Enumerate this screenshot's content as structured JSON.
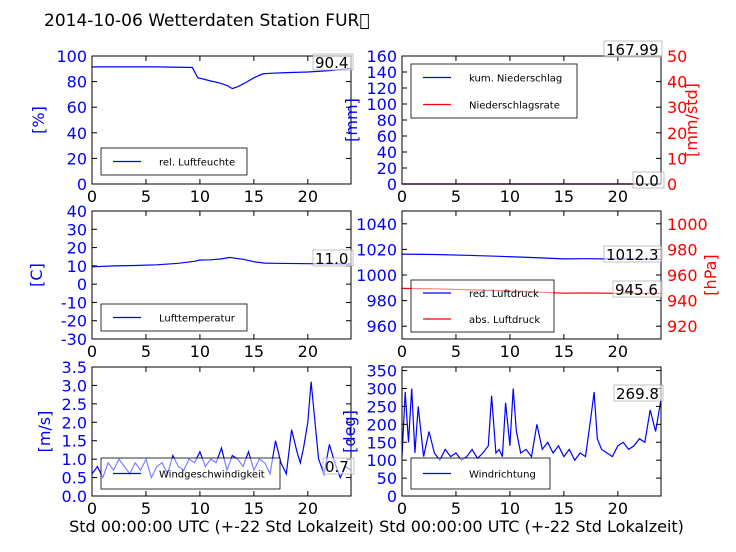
{
  "title": "2014-10-06 Wetterdaten Station FUR\u0000",
  "xlabel": "Std 00:00:00 UTC (+-22 Std Lokalzeit)",
  "colors": {
    "primary": "#0000ff",
    "secondary": "#ff0000"
  },
  "chart_data": [
    {
      "id": "humidity",
      "type": "line",
      "ylabel": "[%]",
      "xlim": [
        0,
        24
      ],
      "ylim": [
        0,
        100
      ],
      "yticks": [
        0,
        20,
        40,
        60,
        80,
        100
      ],
      "xticks": [
        0,
        5,
        10,
        15,
        20
      ],
      "series": [
        {
          "name": "rel. Luftfeuchte",
          "color": "#0000ff",
          "x": [
            0,
            3,
            6,
            9.3,
            9.8,
            10.3,
            11,
            11.8,
            12.5,
            13,
            13.5,
            14.2,
            15,
            15.8,
            16.5,
            18,
            20,
            22,
            24
          ],
          "y": [
            91.5,
            91.5,
            91.5,
            91,
            83,
            82,
            80.5,
            79,
            77,
            74.5,
            76,
            79,
            83,
            86,
            86.5,
            87,
            87.5,
            88.5,
            90.4
          ]
        }
      ],
      "annotations": [
        "90.4"
      ]
    },
    {
      "id": "precip",
      "type": "line",
      "ylabel": "[mm]",
      "ylabel_right": "[mm/std]",
      "xlim": [
        0,
        24
      ],
      "ylim": [
        0,
        160
      ],
      "ylim_right": [
        0,
        50
      ],
      "yticks": [
        0,
        20,
        40,
        60,
        80,
        100,
        120,
        140,
        160
      ],
      "yticks_right": [
        0,
        10,
        20,
        30,
        40,
        50
      ],
      "xticks": [
        0,
        5,
        10,
        15,
        20
      ],
      "series": [
        {
          "name": "kum. Niederschlag",
          "color": "#0000ff",
          "x": [
            0,
            24
          ],
          "y": [
            0,
            0
          ]
        },
        {
          "name": "Niederschlagsrate",
          "color": "#ff0000",
          "axis": "right",
          "x": [
            0,
            24
          ],
          "y": [
            0,
            0
          ]
        }
      ],
      "annotations": [
        "167.99",
        "0.0"
      ]
    },
    {
      "id": "temperature",
      "type": "line",
      "ylabel": "[C]",
      "xlim": [
        0,
        24
      ],
      "ylim": [
        -30,
        40
      ],
      "yticks": [
        -30,
        -20,
        -10,
        0,
        10,
        20,
        30,
        40
      ],
      "xticks": [
        0,
        5,
        10,
        15,
        20
      ],
      "series": [
        {
          "name": "Lufttemperatur",
          "color": "#0000ff",
          "x": [
            0,
            2,
            4,
            6,
            8,
            9.5,
            10,
            11,
            12,
            12.8,
            13.2,
            14,
            15,
            16,
            17,
            20,
            24
          ],
          "y": [
            9.5,
            10,
            10.2,
            10.6,
            11.4,
            12.5,
            13.2,
            13.3,
            13.8,
            14.6,
            14.2,
            13.6,
            12.3,
            11.5,
            11.4,
            11.2,
            11.0
          ]
        }
      ],
      "annotations": [
        "11.0"
      ]
    },
    {
      "id": "pressure",
      "type": "line",
      "ylabel_right": "[hPa]",
      "xlim": [
        0,
        24
      ],
      "ylim": [
        950,
        1050
      ],
      "ylim_right": [
        910,
        1010
      ],
      "yticks": [
        960,
        980,
        1000,
        1020,
        1040
      ],
      "yticks_right": [
        920,
        940,
        960,
        980,
        1000
      ],
      "xticks": [
        0,
        5,
        10,
        15,
        20
      ],
      "series": [
        {
          "name": "red. Luftdruck",
          "color": "#0000ff",
          "x": [
            0,
            3,
            6,
            9,
            12,
            15,
            17,
            20,
            24
          ],
          "y": [
            1016.3,
            1016,
            1015.4,
            1014.6,
            1013.7,
            1012.6,
            1012.7,
            1012.5,
            1012.3
          ]
        },
        {
          "name": "abs. Luftdruck",
          "color": "#ff0000",
          "axis": "right",
          "x": [
            0,
            3,
            6,
            9,
            12,
            15,
            17,
            20,
            24
          ],
          "y": [
            949.5,
            949.2,
            948.5,
            947.8,
            946.9,
            945.8,
            945.9,
            945.7,
            945.6
          ]
        }
      ],
      "annotations": [
        "1012.3",
        "945.6"
      ]
    },
    {
      "id": "windspeed",
      "type": "line",
      "ylabel": "[m/s]",
      "xlim": [
        0,
        24
      ],
      "ylim": [
        0,
        3.5
      ],
      "yticks": [
        0.0,
        0.5,
        1.0,
        1.5,
        2.0,
        2.5,
        3.0,
        3.5
      ],
      "xticks": [
        0,
        5,
        10,
        15,
        20
      ],
      "series": [
        {
          "name": "Windgeschwindigkeit",
          "color": "#0000ff",
          "x": [
            0,
            0.5,
            1,
            1.5,
            2,
            2.5,
            3,
            3.5,
            4,
            4.5,
            5,
            5.5,
            6,
            6.5,
            7,
            7.5,
            8,
            8.5,
            9,
            9.5,
            10,
            10.5,
            11,
            11.5,
            12,
            12.5,
            13,
            13.5,
            14,
            14.5,
            15,
            15.5,
            16,
            16.5,
            17,
            17.5,
            18,
            18.5,
            19,
            19.3,
            19.6,
            20,
            20.3,
            20.6,
            21,
            21.5,
            22,
            22.5,
            23,
            23.5,
            24
          ],
          "y": [
            0.6,
            0.8,
            0.5,
            0.9,
            0.7,
            1.0,
            0.8,
            0.6,
            0.9,
            0.7,
            1.0,
            0.5,
            0.8,
            0.9,
            0.6,
            1.1,
            0.8,
            0.7,
            1.0,
            0.9,
            1.2,
            0.8,
            1.0,
            0.9,
            1.3,
            0.7,
            1.1,
            1.0,
            0.8,
            1.2,
            0.7,
            1.0,
            0.9,
            0.6,
            1.5,
            0.9,
            0.6,
            1.8,
            1.2,
            0.9,
            1.3,
            2.0,
            3.1,
            2.2,
            1.0,
            0.6,
            1.4,
            0.9,
            0.5,
            0.8,
            0.7
          ]
        }
      ],
      "annotations": [
        "0.7"
      ]
    },
    {
      "id": "winddir",
      "type": "line",
      "ylabel": "[deg]",
      "xlim": [
        0,
        24
      ],
      "ylim": [
        0,
        360
      ],
      "yticks": [
        0,
        50,
        100,
        150,
        200,
        250,
        300,
        350
      ],
      "xticks": [
        0,
        5,
        10,
        15,
        20
      ],
      "series": [
        {
          "name": "Windrichtung",
          "color": "#0000ff",
          "x": [
            0,
            0.3,
            0.6,
            0.9,
            1.2,
            1.5,
            2,
            2.5,
            3,
            3.5,
            4,
            4.5,
            5,
            5.5,
            6,
            6.5,
            7,
            7.5,
            8,
            8.3,
            8.7,
            9,
            9.3,
            9.6,
            10,
            10.3,
            10.6,
            11,
            11.5,
            12,
            12.5,
            13,
            13.5,
            14,
            14.5,
            15,
            15.5,
            16,
            16.5,
            17,
            17.5,
            17.8,
            18.1,
            18.5,
            19,
            19.5,
            20,
            20.5,
            21,
            21.5,
            22,
            22.5,
            23,
            23.5,
            24
          ],
          "y": [
            110,
            290,
            150,
            300,
            120,
            250,
            110,
            180,
            120,
            100,
            130,
            110,
            120,
            100,
            110,
            130,
            105,
            120,
            140,
            280,
            120,
            130,
            110,
            260,
            140,
            300,
            180,
            120,
            130,
            110,
            200,
            130,
            150,
            120,
            140,
            110,
            130,
            100,
            120,
            110,
            220,
            290,
            160,
            130,
            120,
            110,
            140,
            150,
            130,
            140,
            160,
            150,
            240,
            180,
            270
          ]
        }
      ],
      "annotations": [
        "269.8"
      ]
    }
  ]
}
